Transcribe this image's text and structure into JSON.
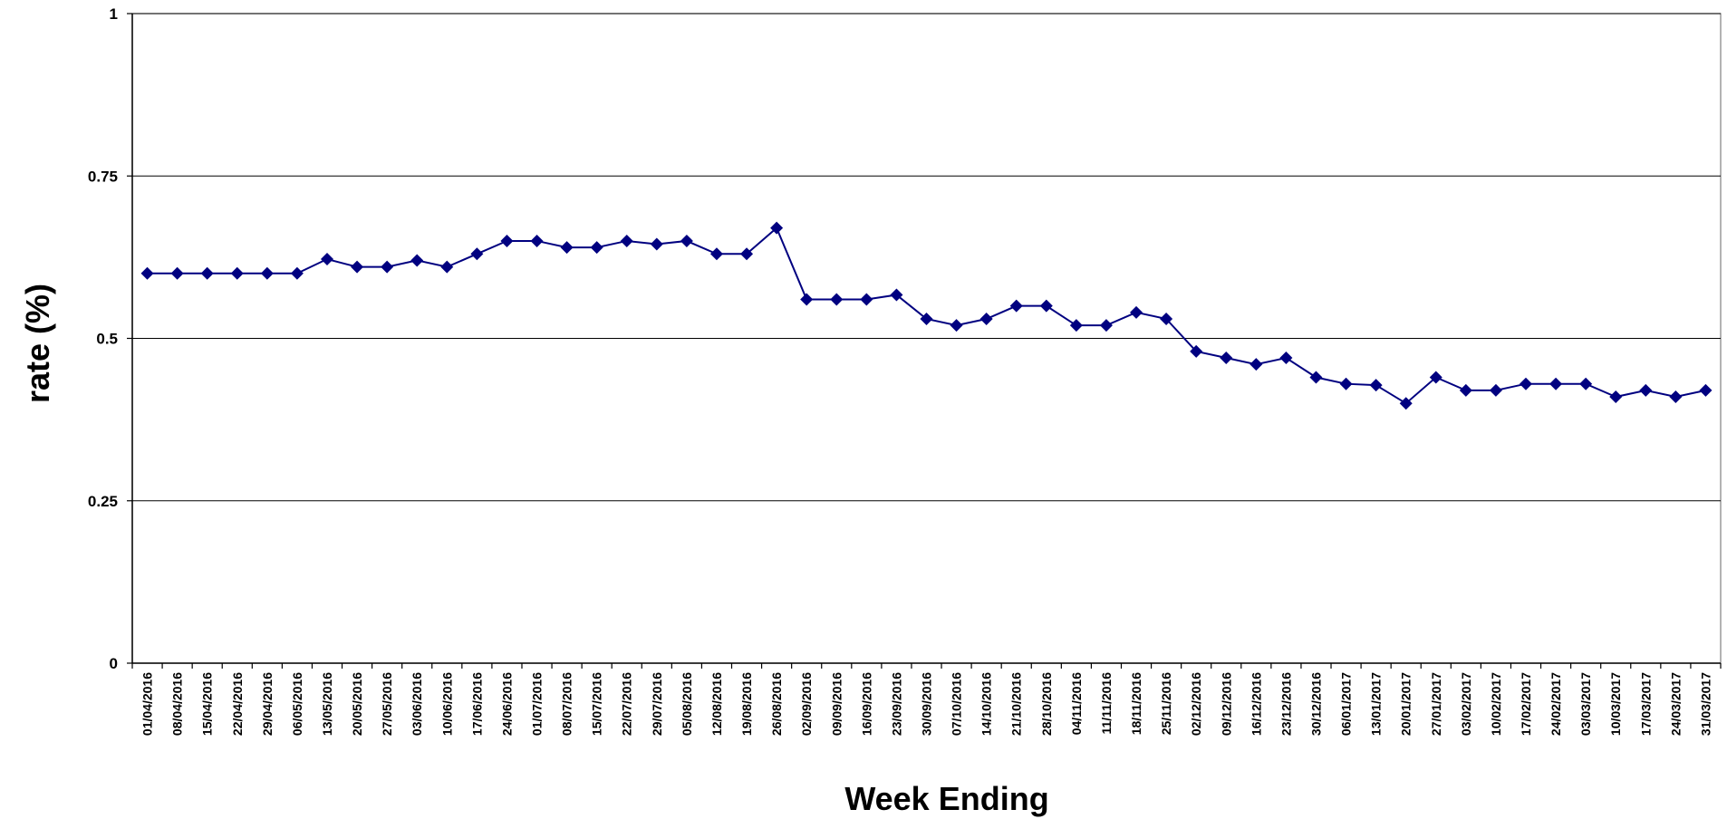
{
  "chart_data": {
    "type": "line",
    "x_label": "Week Ending",
    "y_label": "rate (%)",
    "categories": [
      "01/04/2016",
      "08/04/2016",
      "15/04/2016",
      "22/04/2016",
      "29/04/2016",
      "06/05/2016",
      "13/05/2016",
      "20/05/2016",
      "27/05/2016",
      "03/06/2016",
      "10/06/2016",
      "17/06/2016",
      "24/06/2016",
      "01/07/2016",
      "08/07/2016",
      "15/07/2016",
      "22/07/2016",
      "29/07/2016",
      "05/08/2016",
      "12/08/2016",
      "19/08/2016",
      "26/08/2016",
      "02/09/2016",
      "09/09/2016",
      "16/09/2016",
      "23/09/2016",
      "30/09/2016",
      "07/10/2016",
      "14/10/2016",
      "21/10/2016",
      "28/10/2016",
      "04/11/2016",
      "11/11/2016",
      "18/11/2016",
      "25/11/2016",
      "02/12/2016",
      "09/12/2016",
      "16/12/2016",
      "23/12/2016",
      "30/12/2016",
      "06/01/2017",
      "13/01/2017",
      "20/01/2017",
      "27/01/2017",
      "03/02/2017",
      "10/02/2017",
      "17/02/2017",
      "24/02/2017",
      "03/03/2017",
      "10/03/2017",
      "17/03/2017",
      "24/03/2017",
      "31/03/2017"
    ],
    "series": [
      {
        "color": "#000080",
        "values": [
          0.6,
          0.6,
          0.6,
          0.6,
          0.6,
          0.6,
          0.622,
          0.61,
          0.61,
          0.62,
          0.61,
          0.63,
          0.65,
          0.65,
          0.64,
          0.64,
          0.65,
          0.645,
          0.65,
          0.63,
          0.63,
          0.67,
          0.56,
          0.56,
          0.56,
          0.567,
          0.53,
          0.52,
          0.53,
          0.55,
          0.55,
          0.52,
          0.52,
          0.54,
          0.53,
          0.48,
          0.47,
          0.46,
          0.47,
          0.44,
          0.43,
          0.428,
          0.4,
          0.44,
          0.42,
          0.42,
          0.43,
          0.43,
          0.43,
          0.41,
          0.42,
          0.41,
          0.42
        ]
      }
    ],
    "ylim": [
      0,
      1
    ],
    "yticks": [
      0,
      0.25,
      0.5,
      0.75,
      1
    ],
    "grid": true
  }
}
